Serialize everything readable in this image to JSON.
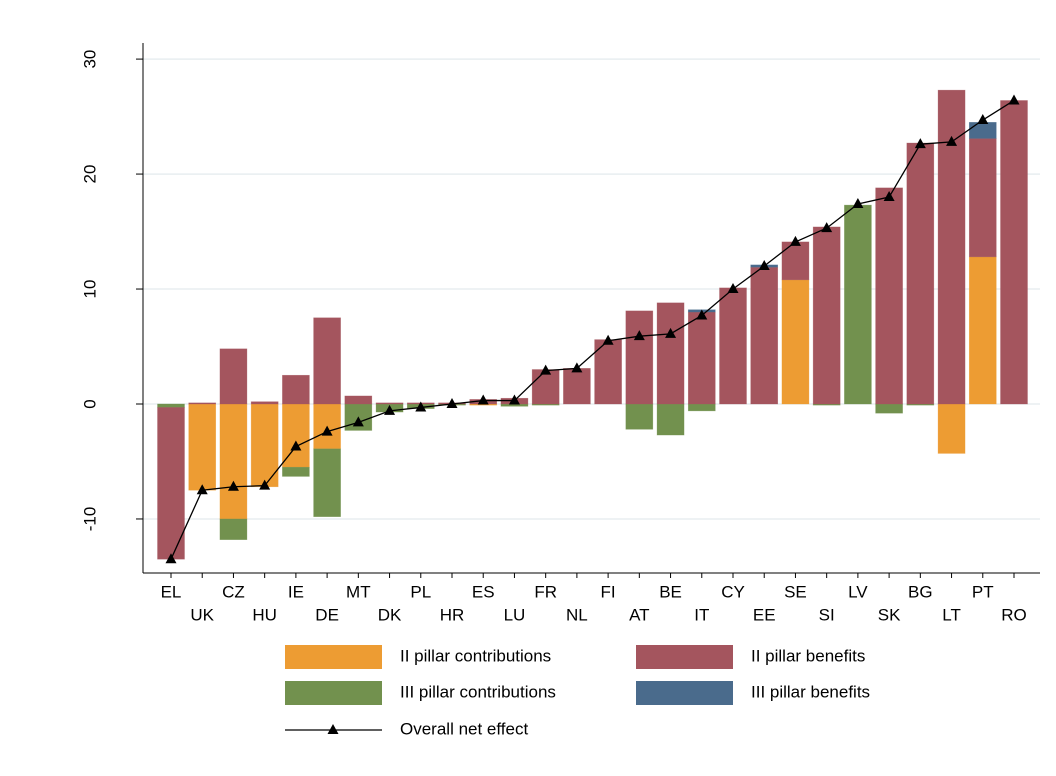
{
  "chart_data": {
    "type": "bar",
    "stacked": true,
    "categories": [
      "EL",
      "UK",
      "CZ",
      "HU",
      "IE",
      "DE",
      "MT",
      "DK",
      "PL",
      "HR",
      "ES",
      "LU",
      "FR",
      "NL",
      "FI",
      "AT",
      "BE",
      "IT",
      "CY",
      "EE",
      "SE",
      "SI",
      "LV",
      "SK",
      "BG",
      "LT",
      "PT",
      "RO"
    ],
    "series": [
      {
        "name": "II pillar contributions",
        "color": "#ed9c33",
        "values": [
          0,
          -7.5,
          -10,
          -7.2,
          -5.5,
          -3.9,
          0,
          0,
          0,
          0,
          -0.1,
          0,
          0,
          0,
          0,
          0,
          0,
          0,
          0,
          0,
          10.8,
          0,
          0,
          0,
          0,
          -4.3,
          12.8,
          0
        ]
      },
      {
        "name": "III pillar contributions",
        "color": "#72914e",
        "values": [
          -0.3,
          0,
          -1.8,
          0,
          -0.8,
          -5.9,
          -2.3,
          -0.7,
          -0.4,
          -0.1,
          0,
          -0.2,
          -0.1,
          0,
          0,
          -2.2,
          -2.7,
          -0.6,
          0,
          0,
          0,
          -0.1,
          17.3,
          -0.8,
          -0.1,
          0,
          0,
          0
        ]
      },
      {
        "name": "II pillar benefits",
        "color": "#a4555e",
        "values": [
          -13.2,
          0.1,
          4.8,
          0.2,
          2.5,
          7.5,
          0.7,
          0.1,
          0.1,
          0.1,
          0.4,
          0.5,
          3.0,
          3.1,
          5.6,
          8.1,
          8.8,
          8.0,
          10.1,
          11.9,
          3.3,
          15.4,
          0,
          18.8,
          22.7,
          27.3,
          10.3,
          26.4
        ]
      },
      {
        "name": "III pillar benefits",
        "color": "#4a6b8c",
        "values": [
          0,
          0,
          0,
          0,
          0,
          0,
          0,
          0,
          0,
          0,
          0,
          0,
          0,
          0,
          0,
          0,
          0,
          0.2,
          0,
          0.2,
          0,
          0,
          0,
          0,
          0,
          0,
          1.4,
          0
        ]
      },
      {
        "name": "Overall net effect",
        "type": "line",
        "color": "#000000",
        "values": [
          -13.5,
          -7.5,
          -7.2,
          -7.1,
          -3.7,
          -2.4,
          -1.6,
          -0.6,
          -0.3,
          0,
          0.3,
          0.3,
          2.9,
          3.1,
          5.5,
          5.9,
          6.1,
          7.7,
          10.0,
          12.0,
          14.1,
          15.3,
          17.4,
          18.0,
          22.6,
          22.8,
          24.7,
          26.4
        ]
      }
    ],
    "ylim": [
      -14.7,
      31.4
    ],
    "yticks": [
      -10,
      0,
      10,
      20,
      30
    ],
    "grid": true
  }
}
